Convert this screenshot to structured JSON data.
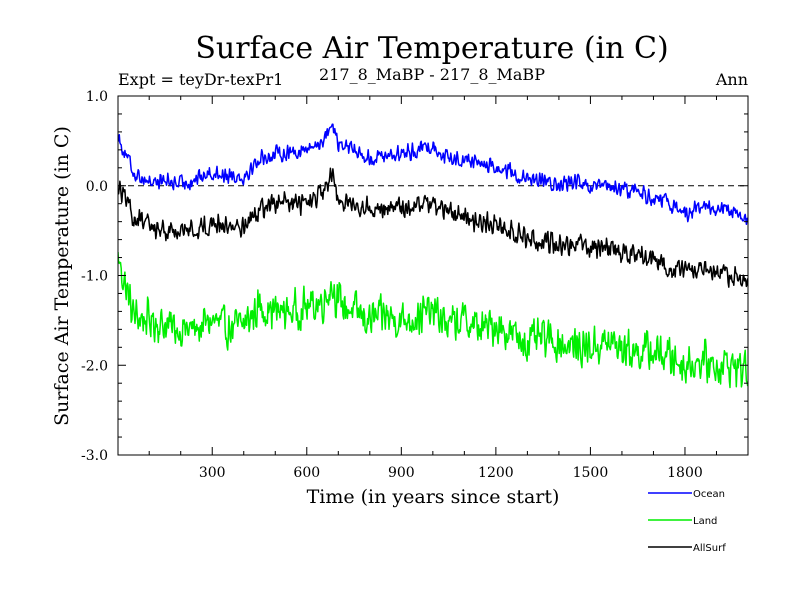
{
  "chart_data": {
    "type": "line",
    "title": "Surface Air Temperature (in C)",
    "subtitle_left": "Expt = teyDr-texPr1",
    "subtitle_center": "217_8_MaBP - 217_8_MaBP",
    "subtitle_right": "Ann",
    "xlabel": "Time (in years since start)",
    "ylabel": "Surface Air Temperature (in C)",
    "xlim": [
      1,
      2000
    ],
    "ylim": [
      -3.0,
      1.0
    ],
    "xticks": [
      300,
      600,
      900,
      1200,
      1500,
      1800
    ],
    "xtick_labels": [
      "300",
      "600",
      "900",
      "1200",
      "1500",
      "1800"
    ],
    "yticks": [
      1.0,
      0.0,
      -1.0,
      -2.0,
      -3.0
    ],
    "ytick_labels": [
      "1.0",
      "0.0",
      "-1.0",
      "-2.0",
      "-3.0"
    ],
    "reference_line": 0.0,
    "legend_position": "bottom-right",
    "series": [
      {
        "name": "Ocean",
        "color": "#0000ff",
        "x": [
          1,
          50,
          100,
          150,
          200,
          250,
          300,
          350,
          400,
          450,
          500,
          550,
          600,
          650,
          680,
          700,
          750,
          800,
          850,
          900,
          950,
          1000,
          1050,
          1100,
          1150,
          1200,
          1250,
          1300,
          1350,
          1400,
          1450,
          1500,
          1550,
          1600,
          1650,
          1700,
          1750,
          1800,
          1850,
          1900,
          1950,
          2000
        ],
        "values": [
          0.55,
          0.15,
          0.05,
          0.05,
          0.02,
          0.08,
          0.15,
          0.12,
          0.1,
          0.3,
          0.35,
          0.38,
          0.4,
          0.5,
          0.7,
          0.45,
          0.4,
          0.3,
          0.35,
          0.35,
          0.4,
          0.45,
          0.3,
          0.3,
          0.25,
          0.2,
          0.15,
          0.05,
          0.05,
          0.0,
          0.05,
          -0.05,
          0.0,
          -0.05,
          -0.05,
          -0.15,
          -0.2,
          -0.3,
          -0.25,
          -0.25,
          -0.3,
          -0.4
        ],
        "noise_amplitude": 0.11
      },
      {
        "name": "Land",
        "color": "#00ee00",
        "x": [
          1,
          50,
          100,
          150,
          200,
          250,
          300,
          350,
          400,
          450,
          500,
          550,
          600,
          650,
          680,
          700,
          750,
          800,
          850,
          900,
          950,
          1000,
          1050,
          1100,
          1150,
          1200,
          1250,
          1300,
          1350,
          1400,
          1450,
          1500,
          1550,
          1600,
          1650,
          1700,
          1750,
          1800,
          1850,
          1900,
          1950,
          2000
        ],
        "values": [
          -0.8,
          -1.45,
          -1.5,
          -1.55,
          -1.6,
          -1.6,
          -1.5,
          -1.6,
          -1.55,
          -1.35,
          -1.4,
          -1.4,
          -1.35,
          -1.3,
          -1.1,
          -1.3,
          -1.4,
          -1.5,
          -1.45,
          -1.5,
          -1.45,
          -1.4,
          -1.55,
          -1.5,
          -1.6,
          -1.55,
          -1.65,
          -1.75,
          -1.7,
          -1.75,
          -1.8,
          -1.8,
          -1.75,
          -1.8,
          -1.85,
          -1.85,
          -1.9,
          -2.0,
          -1.95,
          -2.0,
          -2.0,
          -2.05
        ],
        "noise_amplitude": 0.26
      },
      {
        "name": "AllSurf",
        "color": "#000000",
        "x": [
          1,
          50,
          100,
          150,
          200,
          250,
          300,
          350,
          400,
          450,
          500,
          550,
          600,
          650,
          680,
          700,
          750,
          800,
          850,
          900,
          950,
          1000,
          1050,
          1100,
          1150,
          1200,
          1250,
          1300,
          1350,
          1400,
          1450,
          1500,
          1550,
          1600,
          1650,
          1700,
          1750,
          1800,
          1850,
          1900,
          1950,
          2000
        ],
        "values": [
          0.0,
          -0.35,
          -0.45,
          -0.5,
          -0.5,
          -0.5,
          -0.4,
          -0.45,
          -0.45,
          -0.25,
          -0.2,
          -0.2,
          -0.2,
          -0.1,
          0.1,
          -0.15,
          -0.2,
          -0.25,
          -0.25,
          -0.25,
          -0.2,
          -0.2,
          -0.3,
          -0.35,
          -0.4,
          -0.45,
          -0.5,
          -0.6,
          -0.6,
          -0.65,
          -0.65,
          -0.7,
          -0.7,
          -0.75,
          -0.75,
          -0.85,
          -0.9,
          -0.95,
          -0.95,
          -1.0,
          -1.0,
          -1.1
        ],
        "noise_amplitude": 0.14
      }
    ]
  }
}
